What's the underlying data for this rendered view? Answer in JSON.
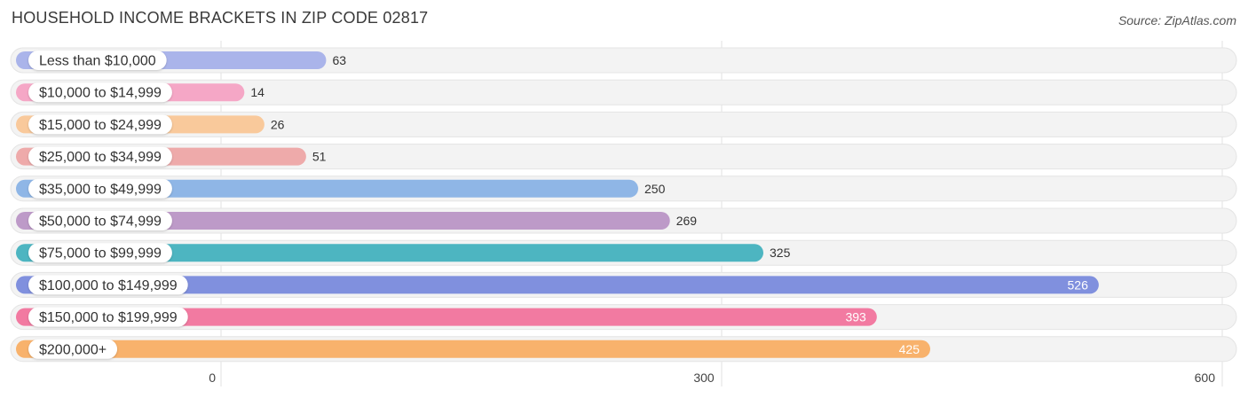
{
  "title": "HOUSEHOLD INCOME BRACKETS IN ZIP CODE 02817",
  "source": "Source: ZipAtlas.com",
  "chart_data": {
    "type": "bar",
    "orientation": "horizontal",
    "categories": [
      "Less than $10,000",
      "$10,000 to $14,999",
      "$15,000 to $24,999",
      "$25,000 to $34,999",
      "$35,000 to $49,999",
      "$50,000 to $74,999",
      "$75,000 to $99,999",
      "$100,000 to $149,999",
      "$150,000 to $199,999",
      "$200,000+"
    ],
    "values": [
      63,
      14,
      26,
      51,
      250,
      269,
      325,
      526,
      393,
      425
    ],
    "colors": [
      "#aab4ea",
      "#f5a7c6",
      "#f9c99b",
      "#eeaaaa",
      "#8fb6e6",
      "#bd9ac8",
      "#4db5c1",
      "#8090de",
      "#f27aa1",
      "#f8b26c"
    ],
    "xlim": [
      0,
      600
    ],
    "xticks": [
      0,
      300,
      600
    ],
    "grid": true
  }
}
